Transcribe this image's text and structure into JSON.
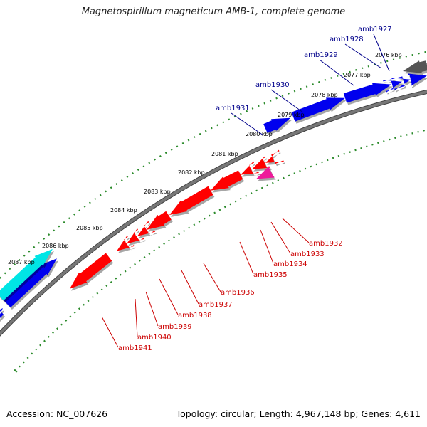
{
  "title": "Magnetospirillum magneticum AMB-1, complete genome",
  "footer": {
    "accession": "Accession: NC_007626",
    "topology": "Topology: circular; Length: 4,967,148 bp; Genes: 4,611"
  },
  "ticks": [
    "2076 kbp",
    "2077 kbp",
    "2078 kbp",
    "2079 kbp",
    "2080 kbp",
    "2081 kbp",
    "2082 kbp",
    "2083 kbp",
    "2084 kbp",
    "2085 kbp",
    "2086 kbp",
    "2087 kbp"
  ],
  "colors": {
    "forward_gene": "#0000ee",
    "reverse_gene": "#ff0000",
    "highlight_gene": "#ee1a9a",
    "cyan_gene": "#00e5e5",
    "gray_gene": "#555555",
    "backbone": "#777777",
    "tick": "#2a8a2a",
    "forward_label": "#00008b",
    "reverse_label": "#cc0000"
  },
  "forward_labels": [
    "amb1927",
    "amb1928",
    "amb1929",
    "amb1930",
    "amb1931"
  ],
  "reverse_labels": [
    "amb1932",
    "amb1933",
    "amb1934",
    "amb1935",
    "amb1936",
    "amb1937",
    "amb1938",
    "amb1939",
    "amb1940",
    "amb1941"
  ]
}
